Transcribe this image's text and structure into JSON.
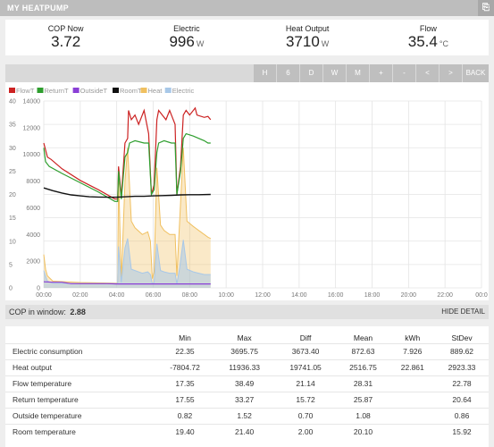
{
  "title": "MY HEATPUMP",
  "title_button_icon": "external-link-icon",
  "stats": [
    {
      "label": "COP Now",
      "value": "3.72",
      "unit": ""
    },
    {
      "label": "Electric",
      "value": "996",
      "unit": "W"
    },
    {
      "label": "Heat Output",
      "value": "3710",
      "unit": "W"
    },
    {
      "label": "Flow",
      "value": "35.4",
      "unit": "°C"
    }
  ],
  "toolbar": [
    "H",
    "6",
    "D",
    "W",
    "M",
    "+",
    "-",
    "<",
    ">",
    "BACK"
  ],
  "colors": {
    "toolbar_btn": "#bfbfbf",
    "flow": "#cc2222",
    "return": "#2e9e2e",
    "outside": "#8a3fd6",
    "room": "#111111",
    "heat": "#f0c060",
    "electric": "#a8c8e8"
  },
  "chart_data": {
    "type": "line",
    "legend": [
      {
        "name": "FlowT",
        "color": "#cc2222"
      },
      {
        "name": "ReturnT",
        "color": "#2e9e2e"
      },
      {
        "name": "OutsideT",
        "color": "#8a3fd6"
      },
      {
        "name": "RoomT",
        "color": "#111111"
      },
      {
        "name": "Heat",
        "color": "#f0c060"
      },
      {
        "name": "Electric",
        "color": "#a8c8e8"
      }
    ],
    "y_left_ticks": [
      "40",
      "35",
      "30",
      "25",
      "20",
      "15",
      "10",
      "5",
      "0"
    ],
    "y_right_ticks": [
      "14000",
      "12000",
      "10000",
      "8000",
      "6000",
      "4000",
      "2000",
      "0"
    ],
    "x_ticks": [
      "00:00",
      "02:00",
      "04:00",
      "06:00",
      "08:00",
      "10:00",
      "12:00",
      "14:00",
      "16:00",
      "18:00",
      "20:00",
      "22:00",
      "00:0"
    ],
    "x_range_hours": [
      0,
      24
    ],
    "ylim_temp": [
      0,
      40
    ],
    "ylim_power": [
      0,
      14000
    ],
    "series_temp": [
      {
        "name": "FlowT",
        "points": [
          [
            0.0,
            31
          ],
          [
            0.2,
            28
          ],
          [
            0.4,
            27.5
          ],
          [
            1,
            25.5
          ],
          [
            2,
            23
          ],
          [
            3,
            21
          ],
          [
            3.9,
            19
          ],
          [
            4.05,
            19
          ],
          [
            4.1,
            26
          ],
          [
            4.25,
            19.5
          ],
          [
            4.45,
            31
          ],
          [
            4.6,
            32
          ],
          [
            4.65,
            38
          ],
          [
            4.8,
            36
          ],
          [
            5.0,
            37
          ],
          [
            5.2,
            35
          ],
          [
            5.5,
            38
          ],
          [
            5.6,
            36
          ],
          [
            5.75,
            33
          ],
          [
            5.9,
            20
          ],
          [
            6.05,
            22
          ],
          [
            6.2,
            36
          ],
          [
            6.3,
            38
          ],
          [
            6.5,
            37
          ],
          [
            6.7,
            36
          ],
          [
            6.9,
            38
          ],
          [
            7.0,
            37
          ],
          [
            7.2,
            35
          ],
          [
            7.3,
            20
          ],
          [
            7.5,
            26
          ],
          [
            7.65,
            37
          ],
          [
            7.8,
            38
          ],
          [
            8.0,
            37
          ],
          [
            8.3,
            38.5
          ],
          [
            8.4,
            37
          ],
          [
            8.8,
            36.5
          ],
          [
            9.0,
            36.7
          ],
          [
            9.15,
            36
          ]
        ]
      },
      {
        "name": "ReturnT",
        "points": [
          [
            0.0,
            30
          ],
          [
            0.1,
            27
          ],
          [
            0.3,
            26
          ],
          [
            1,
            24.5
          ],
          [
            2,
            22.5
          ],
          [
            3,
            20.5
          ],
          [
            3.9,
            18.5
          ],
          [
            4.05,
            18.5
          ],
          [
            4.1,
            25
          ],
          [
            4.25,
            19
          ],
          [
            4.45,
            28
          ],
          [
            4.6,
            29
          ],
          [
            4.7,
            31
          ],
          [
            5.0,
            31.5
          ],
          [
            5.5,
            31
          ],
          [
            5.75,
            31
          ],
          [
            5.9,
            20
          ],
          [
            6.05,
            21
          ],
          [
            6.2,
            29
          ],
          [
            6.3,
            31
          ],
          [
            6.6,
            31.5
          ],
          [
            7.0,
            31
          ],
          [
            7.2,
            31
          ],
          [
            7.3,
            20
          ],
          [
            7.5,
            25
          ],
          [
            7.65,
            32
          ],
          [
            7.8,
            33
          ],
          [
            8.2,
            32.5
          ],
          [
            8.5,
            32
          ],
          [
            8.8,
            31.5
          ],
          [
            9.0,
            31
          ],
          [
            9.15,
            31
          ]
        ]
      },
      {
        "name": "OutsideT",
        "points": [
          [
            0,
            1.3
          ],
          [
            0.5,
            1.2
          ],
          [
            1,
            1.2
          ],
          [
            1.5,
            0.9
          ],
          [
            2,
            0.9
          ],
          [
            2.5,
            0.9
          ],
          [
            3,
            0.9
          ],
          [
            3.5,
            0.9
          ],
          [
            4,
            0.85
          ],
          [
            4.5,
            0.85
          ],
          [
            5,
            0.85
          ],
          [
            5.5,
            0.85
          ],
          [
            6,
            0.85
          ],
          [
            6.5,
            0.85
          ],
          [
            7,
            0.85
          ],
          [
            7.5,
            0.85
          ],
          [
            8,
            0.85
          ],
          [
            8.5,
            0.85
          ],
          [
            9.15,
            0.85
          ]
        ]
      },
      {
        "name": "RoomT",
        "points": [
          [
            0,
            21.4
          ],
          [
            0.5,
            20.8
          ],
          [
            1,
            20.3
          ],
          [
            1.5,
            19.9
          ],
          [
            2,
            19.7
          ],
          [
            2.5,
            19.5
          ],
          [
            3,
            19.45
          ],
          [
            3.5,
            19.4
          ],
          [
            4,
            19.4
          ],
          [
            4.5,
            19.5
          ],
          [
            5,
            19.6
          ],
          [
            5.5,
            19.6
          ],
          [
            6,
            19.7
          ],
          [
            6.5,
            19.75
          ],
          [
            7,
            19.8
          ],
          [
            7.5,
            19.9
          ],
          [
            8,
            19.95
          ],
          [
            8.5,
            19.95
          ],
          [
            9.15,
            20.0
          ]
        ]
      }
    ],
    "series_power": [
      {
        "name": "Heat",
        "points": [
          [
            0,
            2500
          ],
          [
            0.1,
            1400
          ],
          [
            0.2,
            900
          ],
          [
            0.5,
            500
          ],
          [
            2,
            400
          ],
          [
            4.0,
            350
          ],
          [
            4.05,
            350
          ],
          [
            4.1,
            8500
          ],
          [
            4.25,
            500
          ],
          [
            4.45,
            8000
          ],
          [
            4.6,
            10500
          ],
          [
            4.8,
            5000
          ],
          [
            5.0,
            4500
          ],
          [
            5.4,
            4000
          ],
          [
            5.7,
            4200
          ],
          [
            5.85,
            3500
          ],
          [
            5.95,
            700
          ],
          [
            6.05,
            1200
          ],
          [
            6.2,
            9000
          ],
          [
            6.4,
            4700
          ],
          [
            6.6,
            4300
          ],
          [
            6.9,
            4000
          ],
          [
            7.2,
            4000
          ],
          [
            7.3,
            900
          ],
          [
            7.45,
            5000
          ],
          [
            7.65,
            10500
          ],
          [
            7.85,
            5000
          ],
          [
            8.2,
            4600
          ],
          [
            8.5,
            4300
          ],
          [
            8.8,
            4000
          ],
          [
            9.0,
            3800
          ],
          [
            9.15,
            3700
          ]
        ]
      },
      {
        "name": "Electric",
        "points": [
          [
            0,
            1300
          ],
          [
            0.1,
            900
          ],
          [
            0.2,
            500
          ],
          [
            0.5,
            350
          ],
          [
            2,
            330
          ],
          [
            4.0,
            320
          ],
          [
            4.05,
            320
          ],
          [
            4.1,
            3100
          ],
          [
            4.25,
            400
          ],
          [
            4.45,
            3000
          ],
          [
            4.6,
            3700
          ],
          [
            4.8,
            1400
          ],
          [
            5.0,
            1300
          ],
          [
            5.4,
            1100
          ],
          [
            5.7,
            1200
          ],
          [
            5.85,
            1000
          ],
          [
            5.95,
            300
          ],
          [
            6.05,
            400
          ],
          [
            6.2,
            3300
          ],
          [
            6.4,
            1300
          ],
          [
            6.6,
            1200
          ],
          [
            6.9,
            1100
          ],
          [
            7.2,
            1100
          ],
          [
            7.3,
            300
          ],
          [
            7.45,
            1500
          ],
          [
            7.65,
            3600
          ],
          [
            7.85,
            1400
          ],
          [
            8.2,
            1200
          ],
          [
            8.5,
            1100
          ],
          [
            8.8,
            1000
          ],
          [
            9.0,
            1000
          ],
          [
            9.15,
            996
          ]
        ]
      }
    ]
  },
  "cop_window": {
    "label": "COP in window:",
    "value": "2.88",
    "hide": "HIDE DETAIL"
  },
  "table": {
    "headers": [
      "",
      "Min",
      "Max",
      "Diff",
      "Mean",
      "kWh",
      "StDev"
    ],
    "rows": [
      [
        "Electric consumption",
        "22.35",
        "3695.75",
        "3673.40",
        "872.63",
        "7.926",
        "889.62"
      ],
      [
        "Heat output",
        "-7804.72",
        "11936.33",
        "19741.05",
        "2516.75",
        "22.861",
        "2923.33"
      ],
      [
        "Flow temperature",
        "17.35",
        "38.49",
        "21.14",
        "28.31",
        "",
        "22.78"
      ],
      [
        "Return temperature",
        "17.55",
        "33.27",
        "15.72",
        "25.87",
        "",
        "20.64"
      ],
      [
        "Outside temperature",
        "0.82",
        "1.52",
        "0.70",
        "1.08",
        "",
        "0.86"
      ],
      [
        "Room temperature",
        "19.40",
        "21.40",
        "2.00",
        "20.10",
        "",
        "15.92"
      ]
    ]
  }
}
